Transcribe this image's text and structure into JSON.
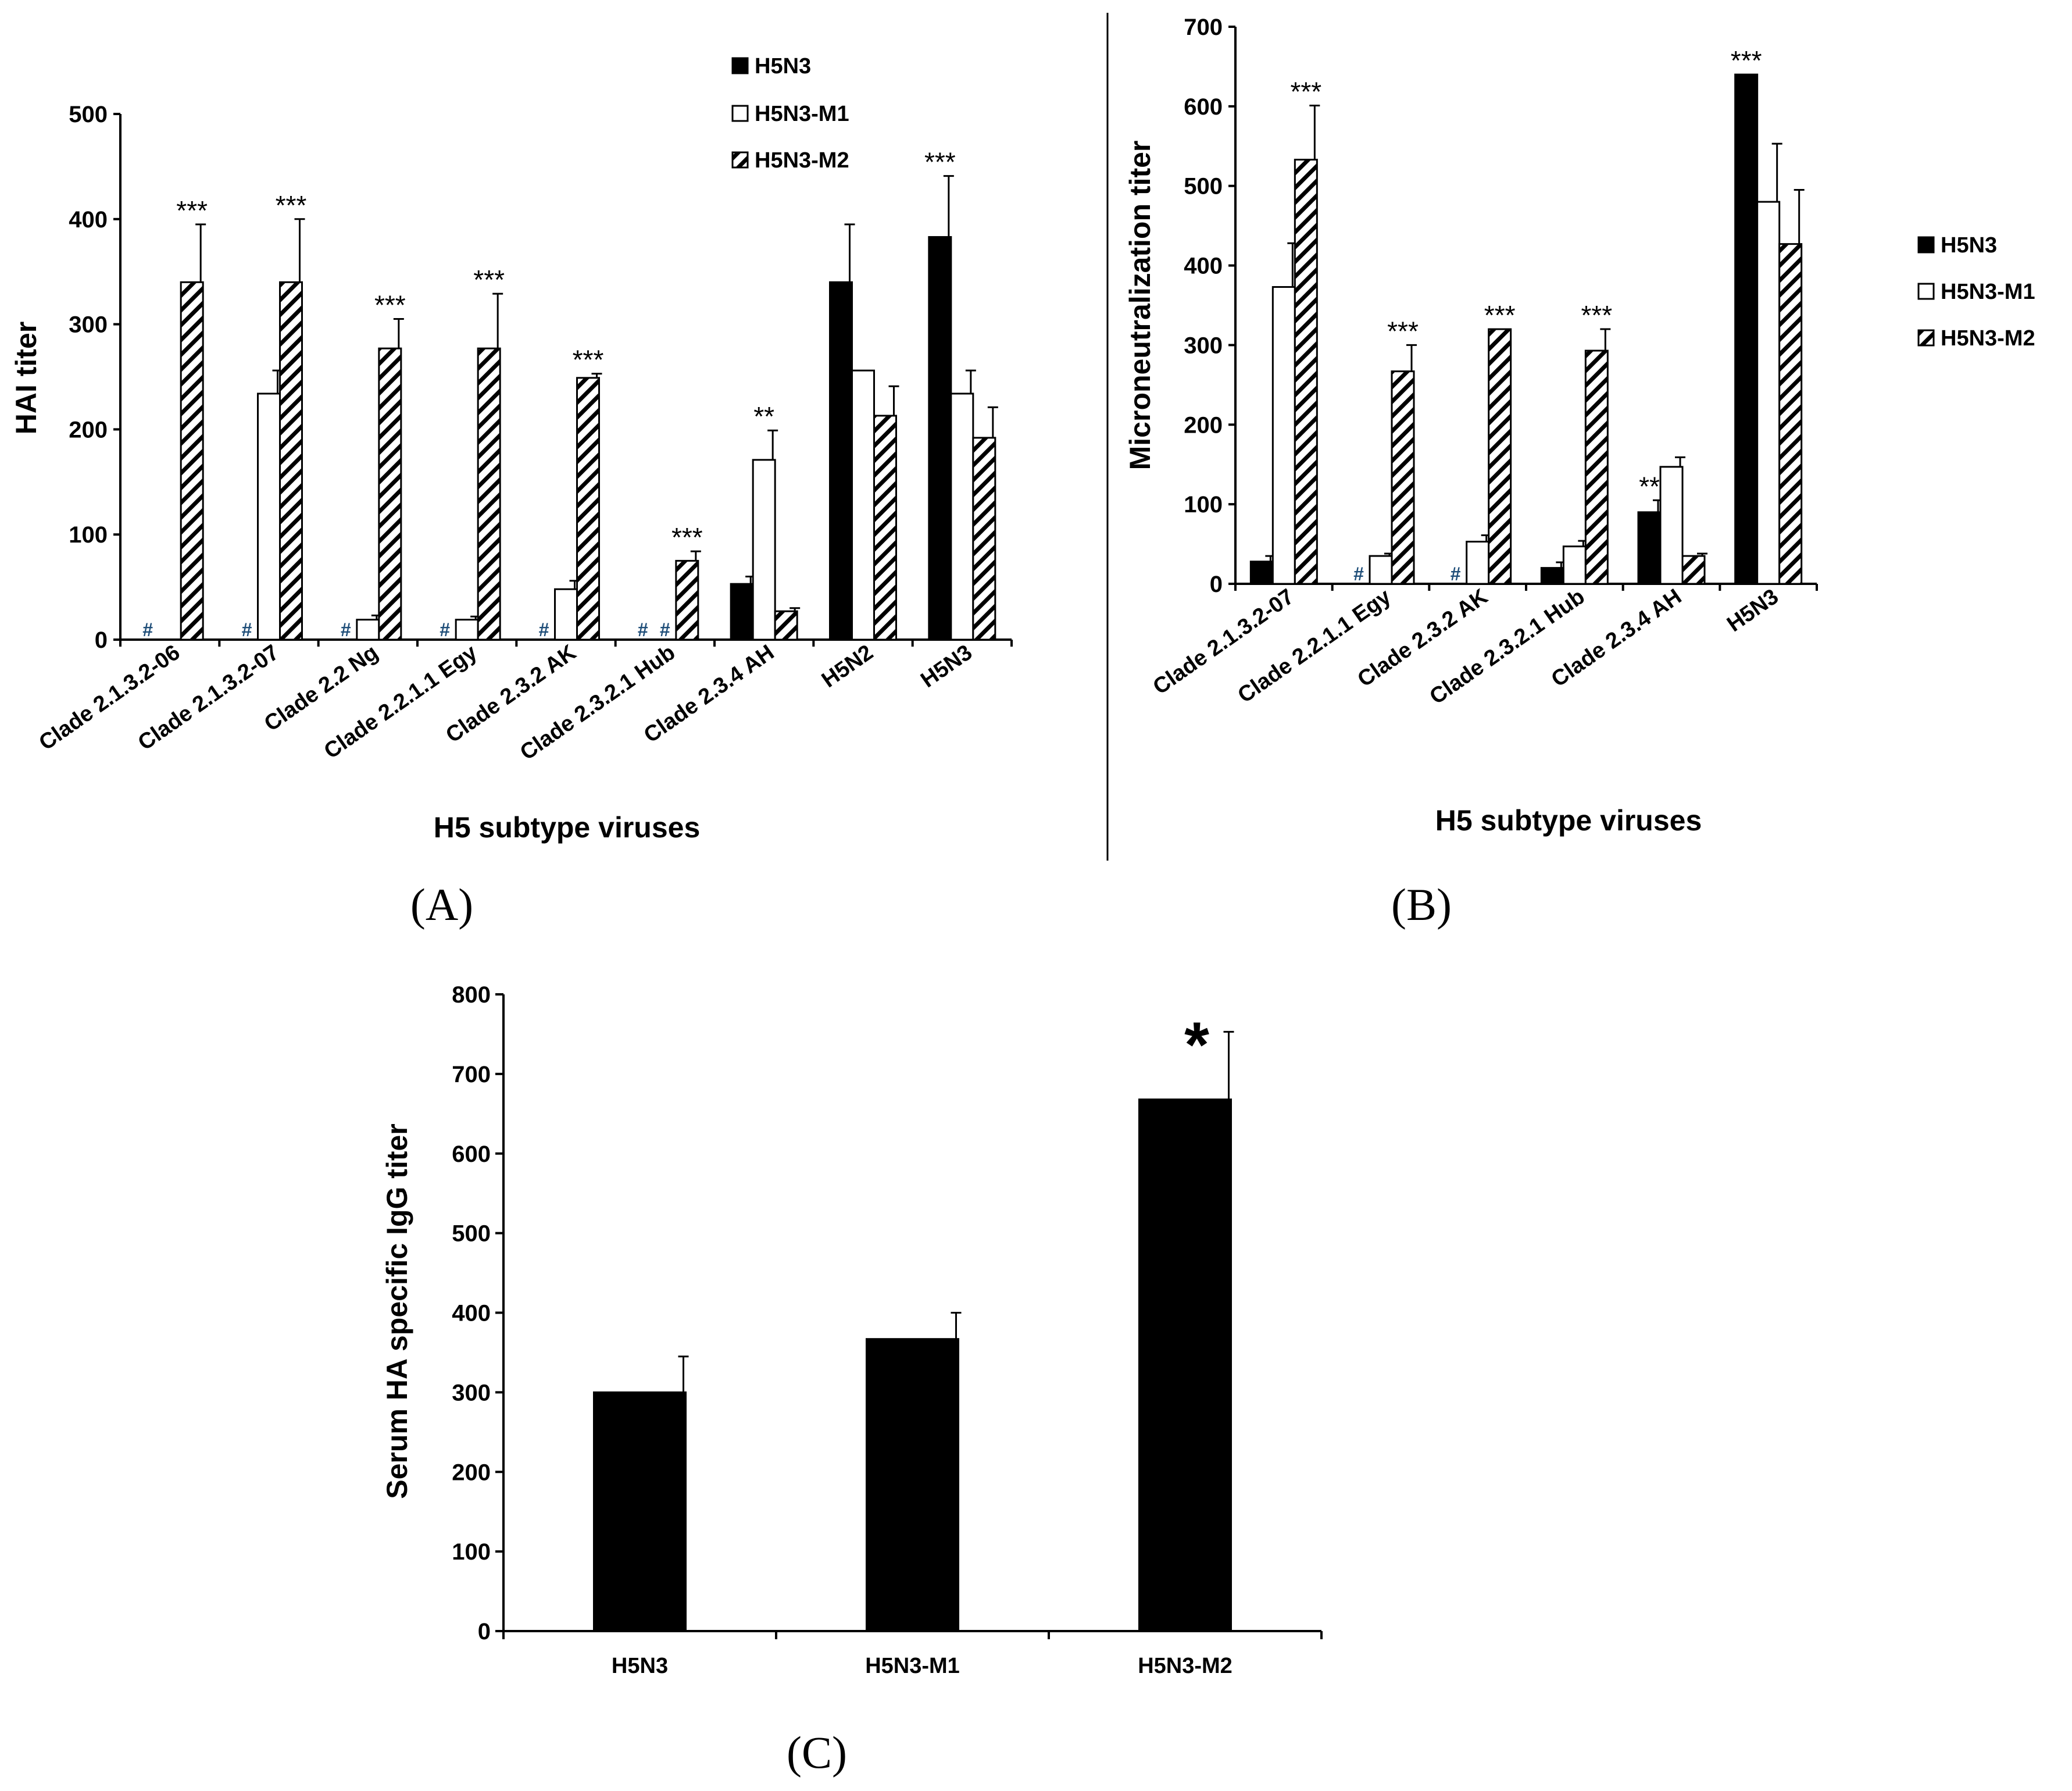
{
  "chart_data": [
    {
      "id": "A",
      "type": "bar",
      "panel_label": "(A)",
      "ylabel": "HAI titer",
      "xlabel": "H5 subtype viruses",
      "ylim": [
        0,
        500
      ],
      "yticks": [
        0,
        100,
        200,
        300,
        400,
        500
      ],
      "categories": [
        "Clade 2.1.3.2-06",
        "Clade 2.1.3.2-07",
        "Clade 2.2 Ng",
        "Clade 2.2.1.1 Egy",
        "Clade 2.3.2 AK",
        "Clade 2.3.2.1 Hub",
        "Clade 2.3.4 AH",
        "H5N2",
        "H5N3"
      ],
      "series": [
        {
          "name": "H5N3",
          "style": "solid",
          "values": [
            0,
            0,
            0,
            0,
            0,
            0,
            53,
            340,
            383
          ],
          "errors": [
            0,
            0,
            0,
            0,
            0,
            0,
            7,
            55,
            58
          ]
        },
        {
          "name": "H5N3-M1",
          "style": "open",
          "values": [
            0,
            234,
            19,
            19,
            48,
            0,
            171,
            256,
            234
          ],
          "errors": [
            0,
            22,
            4,
            3,
            8,
            0,
            28,
            0,
            22
          ]
        },
        {
          "name": "H5N3-M2",
          "style": "hatched",
          "values": [
            340,
            340,
            277,
            277,
            249,
            75,
            27,
            213,
            192
          ],
          "errors": [
            55,
            60,
            28,
            52,
            4,
            9,
            3,
            28,
            29
          ]
        }
      ],
      "annotations": [
        {
          "category": 0,
          "series": 2,
          "text": "***"
        },
        {
          "category": 1,
          "series": 2,
          "text": "***"
        },
        {
          "category": 2,
          "series": 2,
          "text": "***"
        },
        {
          "category": 3,
          "series": 2,
          "text": "***"
        },
        {
          "category": 4,
          "series": 2,
          "text": "***"
        },
        {
          "category": 5,
          "series": 2,
          "text": "***"
        },
        {
          "category": 6,
          "series": 1,
          "text": "**"
        },
        {
          "category": 8,
          "series": 0,
          "text": "***"
        }
      ],
      "hash_markers": [
        {
          "category": 0,
          "series": 0,
          "text": "#"
        },
        {
          "category": 1,
          "series": 0,
          "text": "#"
        },
        {
          "category": 2,
          "series": 0,
          "text": "#"
        },
        {
          "category": 3,
          "series": 0,
          "text": "#"
        },
        {
          "category": 4,
          "series": 0,
          "text": "#"
        },
        {
          "category": 5,
          "series": 0,
          "text": "#"
        },
        {
          "category": 5,
          "series": 1,
          "text": "#"
        }
      ],
      "legend": [
        "H5N3",
        "H5N3-M1",
        "H5N3-M2"
      ],
      "legend_position": "top-right"
    },
    {
      "id": "B",
      "type": "bar",
      "panel_label": "(B)",
      "ylabel": "Microneutralization titer",
      "xlabel": "H5 subtype viruses",
      "ylim": [
        0,
        700
      ],
      "yticks": [
        0,
        100,
        200,
        300,
        400,
        500,
        600,
        700
      ],
      "categories": [
        "Clade 2.1.3.2-07",
        "Clade 2.2.1.1 Egy",
        "Clade 2.3.2 AK",
        "Clade 2.3.2.1 Hub",
        "Clade 2.3.4 AH",
        "H5N3"
      ],
      "series": [
        {
          "name": "H5N3",
          "style": "solid",
          "values": [
            28,
            0,
            0,
            20,
            90,
            640
          ],
          "errors": [
            7,
            0,
            0,
            7,
            15,
            0
          ]
        },
        {
          "name": "H5N3-M1",
          "style": "open",
          "values": [
            373,
            35,
            53,
            47,
            147,
            480
          ],
          "errors": [
            55,
            3,
            8,
            7,
            12,
            73
          ]
        },
        {
          "name": "H5N3-M2",
          "style": "hatched",
          "values": [
            533,
            267,
            320,
            293,
            35,
            427
          ],
          "errors": [
            68,
            33,
            0,
            27,
            3,
            68
          ]
        }
      ],
      "annotations": [
        {
          "category": 0,
          "series": 2,
          "text": "***"
        },
        {
          "category": 1,
          "series": 2,
          "text": "***"
        },
        {
          "category": 2,
          "series": 2,
          "text": "***"
        },
        {
          "category": 3,
          "series": 2,
          "text": "***"
        },
        {
          "category": 4,
          "series": 0,
          "text": "**"
        },
        {
          "category": 5,
          "series": 0,
          "text": "***"
        }
      ],
      "hash_markers": [
        {
          "category": 1,
          "series": 0,
          "text": "#"
        },
        {
          "category": 2,
          "series": 0,
          "text": "#"
        }
      ],
      "legend": [
        "H5N3",
        "H5N3-M1",
        "H5N3-M2"
      ],
      "legend_position": "right"
    },
    {
      "id": "C",
      "type": "bar",
      "panel_label": "(C)",
      "ylabel": "Serum HA specific IgG titer",
      "xlabel": "",
      "ylim": [
        0,
        800
      ],
      "yticks": [
        0,
        100,
        200,
        300,
        400,
        500,
        600,
        700,
        800
      ],
      "categories": [
        "H5N3",
        "H5N3-M1",
        "H5N3-M2"
      ],
      "series": [
        {
          "name": "IgG titer",
          "style": "solid",
          "values": [
            300,
            367,
            668
          ],
          "errors": [
            45,
            33,
            85
          ]
        }
      ],
      "annotations": [
        {
          "category": 2,
          "series": 0,
          "text": "*"
        }
      ]
    }
  ]
}
